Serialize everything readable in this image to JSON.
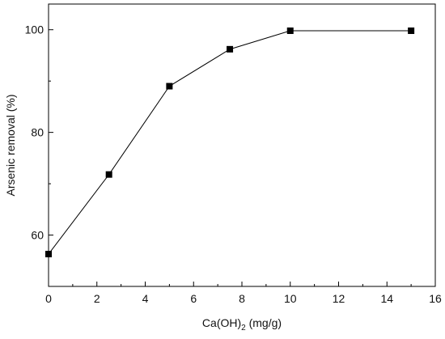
{
  "chart_data": {
    "type": "line",
    "title": "",
    "xlabel_prefix": "Ca(OH)",
    "xlabel_subscript": "2",
    "xlabel_suffix": " (mg/g)",
    "ylabel": "Arsenic removal (%)",
    "xlim": [
      0,
      16
    ],
    "ylim": [
      50,
      105
    ],
    "xticks": [
      0,
      2,
      4,
      6,
      8,
      10,
      12,
      14,
      16
    ],
    "yticks": [
      60,
      80,
      100
    ],
    "grid": false,
    "legend": "none",
    "series": [
      {
        "x": [
          0,
          2.5,
          5,
          7.5,
          10,
          15
        ],
        "y": [
          56.3,
          71.8,
          89.0,
          96.2,
          99.8,
          99.8
        ]
      }
    ],
    "colors": {
      "line": "#000000",
      "marker": "#000000",
      "axis": "#000000"
    }
  }
}
